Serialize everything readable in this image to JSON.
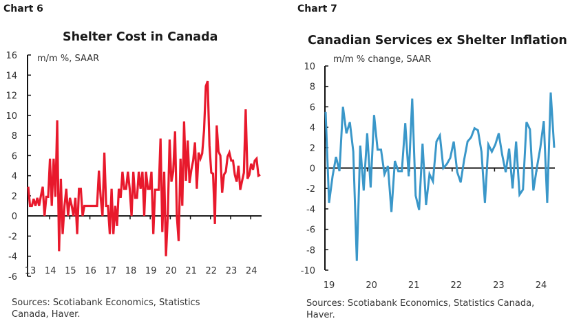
{
  "chart_data": [
    {
      "id": "chart6",
      "type": "line",
      "label": "Chart 6",
      "title": "Shelter Cost in Canada",
      "unit_label": "m/m %, SAAR",
      "sources": [
        "Sources: Scotiabank Economics, Statistics",
        "Canada, Haver."
      ],
      "xlabel": "",
      "ylabel": "",
      "ylim": [
        -6,
        16
      ],
      "yticks": [
        16,
        14,
        12,
        10,
        8,
        6,
        4,
        2,
        0,
        -2,
        -4,
        -6
      ],
      "xticks": [
        "13",
        "14",
        "15",
        "16",
        "17",
        "18",
        "19",
        "20",
        "21",
        "22",
        "23",
        "24"
      ],
      "xlim": [
        2013,
        2024.55
      ],
      "color": "#e8192c",
      "series": [
        {
          "name": "Shelter cost m/m % SAAR",
          "x_start": 2013.0,
          "x_step": 0.0833,
          "values": [
            2.9,
            1.0,
            1.0,
            1.7,
            1.0,
            1.8,
            1.0,
            2.0,
            2.9,
            0.0,
            1.9,
            1.9,
            5.7,
            1.0,
            5.7,
            1.9,
            9.5,
            -3.5,
            3.7,
            -1.8,
            1.0,
            2.7,
            0.0,
            1.8,
            1.0,
            0.0,
            1.8,
            -1.8,
            2.7,
            2.7,
            0.0,
            1.0,
            1.0,
            1.0,
            1.0,
            1.0,
            1.0,
            1.0,
            1.0,
            4.5,
            1.8,
            0.0,
            6.3,
            1.0,
            1.0,
            -1.8,
            2.7,
            -1.8,
            1.0,
            -1.0,
            2.7,
            1.8,
            4.4,
            2.7,
            2.7,
            4.4,
            2.7,
            0.0,
            4.4,
            1.8,
            1.8,
            4.4,
            2.7,
            4.4,
            0.0,
            4.4,
            2.7,
            2.7,
            4.4,
            -1.8,
            2.6,
            2.6,
            2.6,
            7.7,
            -1.6,
            4.4,
            -4.0,
            0.0,
            7.6,
            3.4,
            4.4,
            8.4,
            0.0,
            -2.5,
            5.7,
            1.0,
            9.4,
            3.5,
            7.5,
            3.3,
            4.6,
            5.5,
            7.3,
            2.7,
            6.3,
            5.7,
            6.2,
            8.5,
            12.9,
            13.4,
            7.0,
            4.3,
            4.2,
            -0.8,
            9.0,
            6.4,
            6.0,
            2.3,
            4.1,
            4.4,
            5.9,
            6.3,
            5.5,
            5.5,
            4.1,
            3.4,
            5.0,
            2.6,
            3.5,
            4.3,
            10.6,
            3.7,
            4.1,
            5.2,
            4.6,
            5.5,
            5.7,
            4.0,
            4.1
          ],
          "notes": "Approximate readings from the plot; monthly data ~2013 to mid-2024"
        }
      ],
      "grid": false,
      "legend": "none"
    },
    {
      "id": "chart7",
      "type": "line",
      "label": "Chart 7",
      "title": "Canadian Services ex Shelter Inflation",
      "unit_label": "m/m % change, SAAR",
      "sources": [
        "Sources: Scotiabank Economics, Statistics Canada,",
        "Haver."
      ],
      "xlabel": "",
      "ylabel": "",
      "ylim": [
        -10,
        10
      ],
      "yticks": [
        10,
        8,
        6,
        4,
        2,
        0,
        -2,
        -4,
        -6,
        -8,
        -10
      ],
      "xticks": [
        "19",
        "20",
        "21",
        "22",
        "23",
        "24"
      ],
      "xlim": [
        2019.0,
        2024.45
      ],
      "color": "#3a97c9",
      "series": [
        {
          "name": "Services ex shelter m/m % change SAAR",
          "x_start": 2019.0,
          "x_step": 0.0833,
          "values": [
            5.5,
            -3.4,
            -0.8,
            1.1,
            -0.3,
            6.0,
            3.4,
            4.5,
            1.6,
            -9.1,
            2.2,
            -2.2,
            3.4,
            -1.9,
            5.2,
            1.8,
            1.8,
            -0.6,
            0.2,
            -4.3,
            0.7,
            -0.3,
            -0.3,
            4.4,
            -0.8,
            6.8,
            -2.7,
            -4.1,
            2.4,
            -3.6,
            -0.6,
            -1.3,
            2.6,
            3.2,
            0.0,
            0.4,
            1.0,
            2.6,
            -0.4,
            -1.4,
            0.8,
            2.6,
            3.0,
            3.9,
            3.7,
            1.6,
            -3.4,
            2.3,
            1.6,
            2.3,
            3.4,
            1.3,
            -0.4,
            1.9,
            -2.0,
            2.6,
            -2.6,
            -2.1,
            4.5,
            3.8,
            -2.2,
            0.0,
            2.0,
            4.6,
            -3.4,
            7.4,
            2.0
          ],
          "notes": "Approximate readings from the plot; monthly data 2019 to mid-2024"
        }
      ],
      "grid": false,
      "legend": "none"
    }
  ]
}
